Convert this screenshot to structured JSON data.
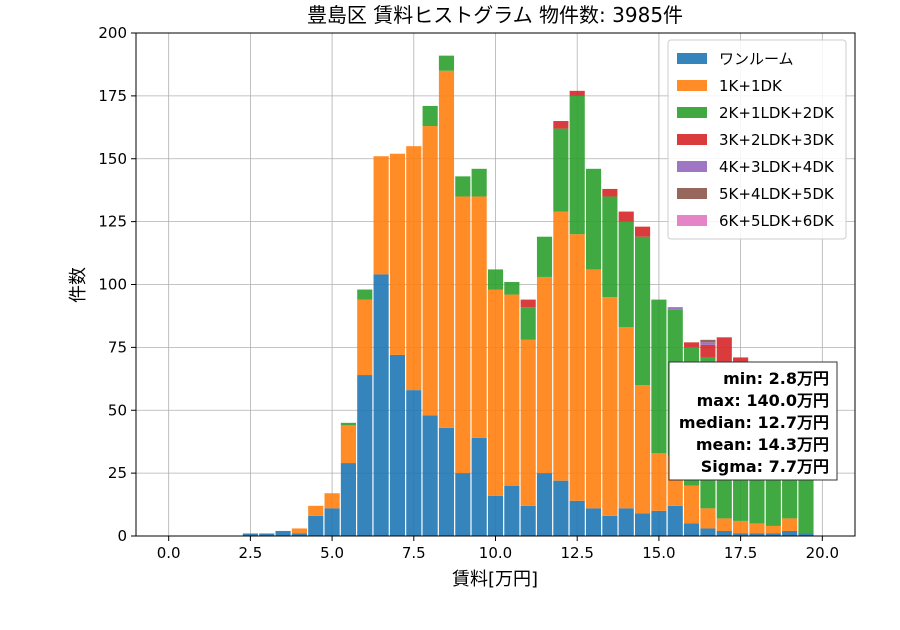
{
  "chart_data": {
    "type": "bar",
    "stacked": true,
    "title": "豊島区 賃料ヒストグラム 物件数: 3985件",
    "xlabel": "賃料[万円]",
    "ylabel": "件数",
    "xlim": [
      -1.0,
      21.0
    ],
    "ylim": [
      0,
      200
    ],
    "xticks": [
      0.0,
      2.5,
      5.0,
      7.5,
      10.0,
      12.5,
      15.0,
      17.5,
      20.0
    ],
    "xtick_labels": [
      "0.0",
      "2.5",
      "5.0",
      "7.5",
      "10.0",
      "12.5",
      "15.0",
      "17.5",
      "20.0"
    ],
    "yticks": [
      0,
      25,
      50,
      75,
      100,
      125,
      150,
      175,
      200
    ],
    "ytick_labels": [
      "0",
      "25",
      "50",
      "75",
      "100",
      "125",
      "150",
      "175",
      "200"
    ],
    "grid": true,
    "legend_position": "top-right",
    "bin_width": 0.5,
    "bin_start": 2.25,
    "bins": [
      2.5,
      3.0,
      3.5,
      4.0,
      4.5,
      5.0,
      5.5,
      6.0,
      6.5,
      7.0,
      7.5,
      8.0,
      8.5,
      9.0,
      9.5,
      10.0,
      10.5,
      11.0,
      11.5,
      12.0,
      12.5,
      13.0,
      13.5,
      14.0,
      14.5,
      15.0,
      15.5,
      16.0,
      16.5,
      17.0,
      17.5,
      18.0,
      18.5,
      19.0,
      19.5
    ],
    "series": [
      {
        "name": "ワンルーム",
        "color": "#1f77b4",
        "values": [
          1,
          1,
          2,
          1,
          8,
          11,
          29,
          64,
          104,
          72,
          58,
          48,
          43,
          25,
          39,
          16,
          20,
          12,
          25,
          22,
          14,
          11,
          8,
          11,
          9,
          10,
          12,
          5,
          3,
          2,
          1,
          1,
          1,
          2,
          1
        ]
      },
      {
        "name": "1K+1DK",
        "color": "#ff7f0e",
        "values": [
          0,
          0,
          0,
          2,
          4,
          6,
          15,
          30,
          47,
          80,
          97,
          115,
          142,
          110,
          96,
          82,
          76,
          66,
          78,
          107,
          106,
          95,
          87,
          72,
          51,
          23,
          20,
          15,
          8,
          5,
          5,
          4,
          3,
          5,
          0
        ]
      },
      {
        "name": "2K+1LDK+2DK",
        "color": "#2ca02c",
        "values": [
          0,
          0,
          0,
          0,
          0,
          0,
          1,
          4,
          0,
          0,
          0,
          8,
          6,
          8,
          11,
          8,
          5,
          13,
          16,
          33,
          55,
          40,
          40,
          42,
          59,
          61,
          58,
          55,
          60,
          60,
          62,
          55,
          57,
          50,
          52
        ]
      },
      {
        "name": "3K+2LDK+3DK",
        "color": "#d62728",
        "values": [
          0,
          0,
          0,
          0,
          0,
          0,
          0,
          0,
          0,
          0,
          0,
          0,
          0,
          0,
          0,
          0,
          0,
          3,
          0,
          3,
          2,
          0,
          3,
          4,
          4,
          0,
          0,
          2,
          5,
          12,
          3,
          7,
          6,
          4,
          2
        ]
      },
      {
        "name": "4K+3LDK+4DK",
        "color": "#9467bd",
        "values": [
          0,
          0,
          0,
          0,
          0,
          0,
          0,
          0,
          0,
          0,
          0,
          0,
          0,
          0,
          0,
          0,
          0,
          0,
          0,
          0,
          0,
          0,
          0,
          0,
          0,
          0,
          1,
          0,
          1,
          0,
          0,
          0,
          0,
          1,
          0
        ]
      },
      {
        "name": "5K+4LDK+5DK",
        "color": "#8c564b",
        "values": [
          0,
          0,
          0,
          0,
          0,
          0,
          0,
          0,
          0,
          0,
          0,
          0,
          0,
          0,
          0,
          0,
          0,
          0,
          0,
          0,
          0,
          0,
          0,
          0,
          0,
          0,
          0,
          0,
          1,
          0,
          0,
          0,
          0,
          0,
          0
        ]
      },
      {
        "name": "6K+5LDK+6DK",
        "color": "#e377c2",
        "values": [
          0,
          0,
          0,
          0,
          0,
          0,
          0,
          0,
          0,
          0,
          0,
          0,
          0,
          0,
          0,
          0,
          0,
          0,
          0,
          0,
          0,
          0,
          0,
          0,
          0,
          0,
          0,
          0,
          0,
          0,
          0,
          0,
          0,
          0,
          0
        ]
      }
    ],
    "stats_box": [
      "min: 2.8万円",
      "max: 140.0万円",
      "median: 12.7万円",
      "mean: 14.3万円",
      "Sigma: 7.7万円"
    ]
  }
}
